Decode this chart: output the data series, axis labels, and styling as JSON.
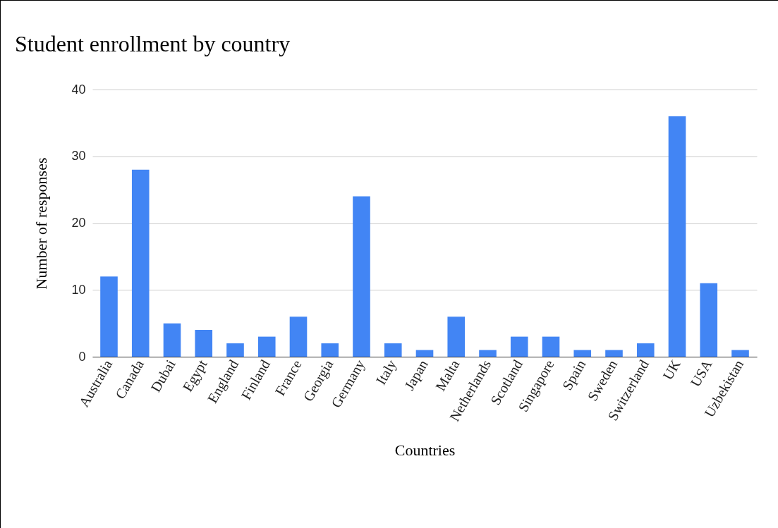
{
  "chart_data": {
    "type": "bar",
    "title": "Student enrollment by country",
    "xlabel": "Countries",
    "ylabel": "Number of responses",
    "categories": [
      "Australia",
      "Canada",
      "Dubai",
      "Egypt",
      "England",
      "Finland",
      "France",
      "Georgia",
      "Germany",
      "Italy",
      "Japan",
      "Malta",
      "Netherlands",
      "Scotland",
      "Singapore",
      "Spain",
      "Sweden",
      "Switzerland",
      "UK",
      "USA",
      "Uzbekistan"
    ],
    "values": [
      12,
      28,
      5,
      4,
      2,
      3,
      6,
      2,
      24,
      2,
      1,
      6,
      1,
      3,
      3,
      1,
      1,
      2,
      36,
      11,
      1
    ],
    "color": "#4285f4",
    "ylim": [
      0,
      40
    ],
    "yticks": [
      0,
      10,
      20,
      30,
      40
    ],
    "grid": "y"
  }
}
